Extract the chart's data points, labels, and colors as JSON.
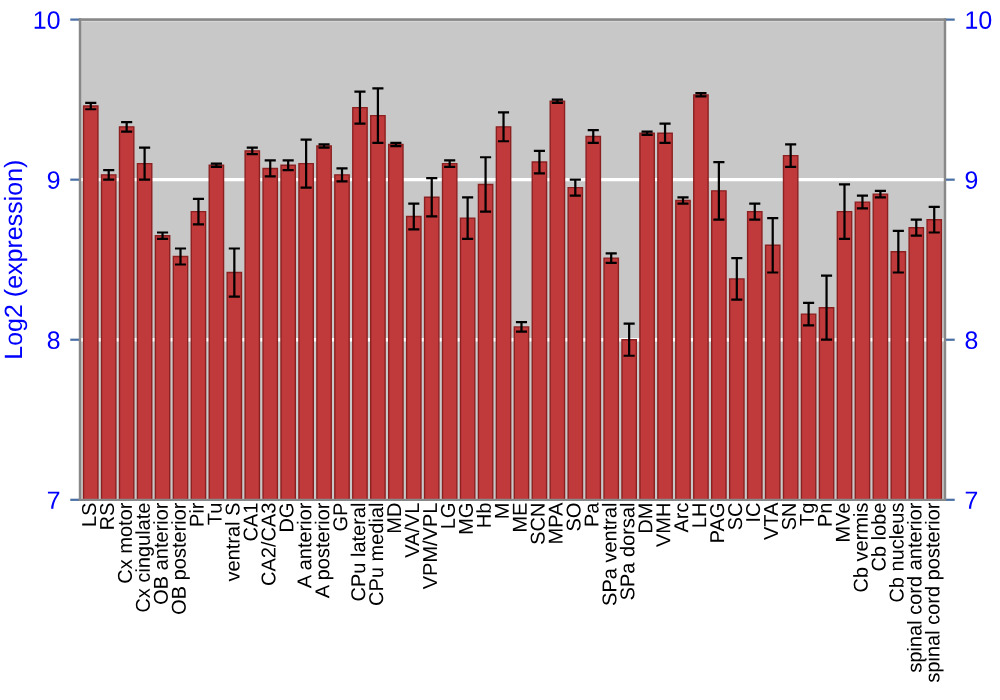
{
  "chart_data": {
    "type": "bar",
    "ylabel": "Log2 (expression)",
    "categories": [
      "LS",
      "RS",
      "Cx motor",
      "Cx cingulate",
      "OB anterior",
      "OB posterior",
      "Pir",
      "Tu",
      "ventral S",
      "CA1",
      "CA2/CA3",
      "DG",
      "A anterior",
      "A posterior",
      "GP",
      "CPu lateral",
      "CPu medial",
      "MD",
      "VA/VL",
      "VPM/VPL",
      "LG",
      "MG",
      "Hb",
      "M",
      "ME",
      "SCN",
      "MPA",
      "SO",
      "Pa",
      "SPa ventral",
      "SPa dorsal",
      "DM",
      "VMH",
      "Arc",
      "LH",
      "PAG",
      "SC",
      "IC",
      "VTA",
      "SN",
      "Tg",
      "Pn",
      "MVe",
      "Cb vermis",
      "Cb lobe",
      "Cb nucleus",
      "spinal cord anterior",
      "spinal cord posterior"
    ],
    "values": [
      9.46,
      9.03,
      9.33,
      9.1,
      8.65,
      8.52,
      8.8,
      9.09,
      8.42,
      9.18,
      9.07,
      9.09,
      9.1,
      9.21,
      9.03,
      9.45,
      9.4,
      9.22,
      8.77,
      8.89,
      9.1,
      8.76,
      8.97,
      9.33,
      8.08,
      9.11,
      9.49,
      8.95,
      9.27,
      8.51,
      8.0,
      9.29,
      9.29,
      8.87,
      9.53,
      8.93,
      8.38,
      8.8,
      8.59,
      9.15,
      8.16,
      8.2,
      8.8,
      8.86,
      8.91,
      8.55,
      8.7,
      8.75
    ],
    "errors": [
      0.02,
      0.03,
      0.03,
      0.1,
      0.02,
      0.05,
      0.08,
      0.01,
      0.15,
      0.02,
      0.05,
      0.03,
      0.15,
      0.01,
      0.04,
      0.1,
      0.17,
      0.01,
      0.08,
      0.12,
      0.02,
      0.13,
      0.17,
      0.09,
      0.03,
      0.07,
      0.01,
      0.05,
      0.04,
      0.03,
      0.1,
      0.01,
      0.06,
      0.02,
      0.01,
      0.18,
      0.13,
      0.05,
      0.17,
      0.07,
      0.07,
      0.2,
      0.17,
      0.04,
      0.02,
      0.13,
      0.05,
      0.08
    ],
    "color": "#c0393b",
    "ylim": [
      7,
      10
    ],
    "yticks": [
      7,
      8,
      9,
      10
    ],
    "y2lim": [
      7,
      10
    ],
    "y2ticks": [
      7,
      8,
      9,
      10
    ],
    "grid": "y"
  }
}
